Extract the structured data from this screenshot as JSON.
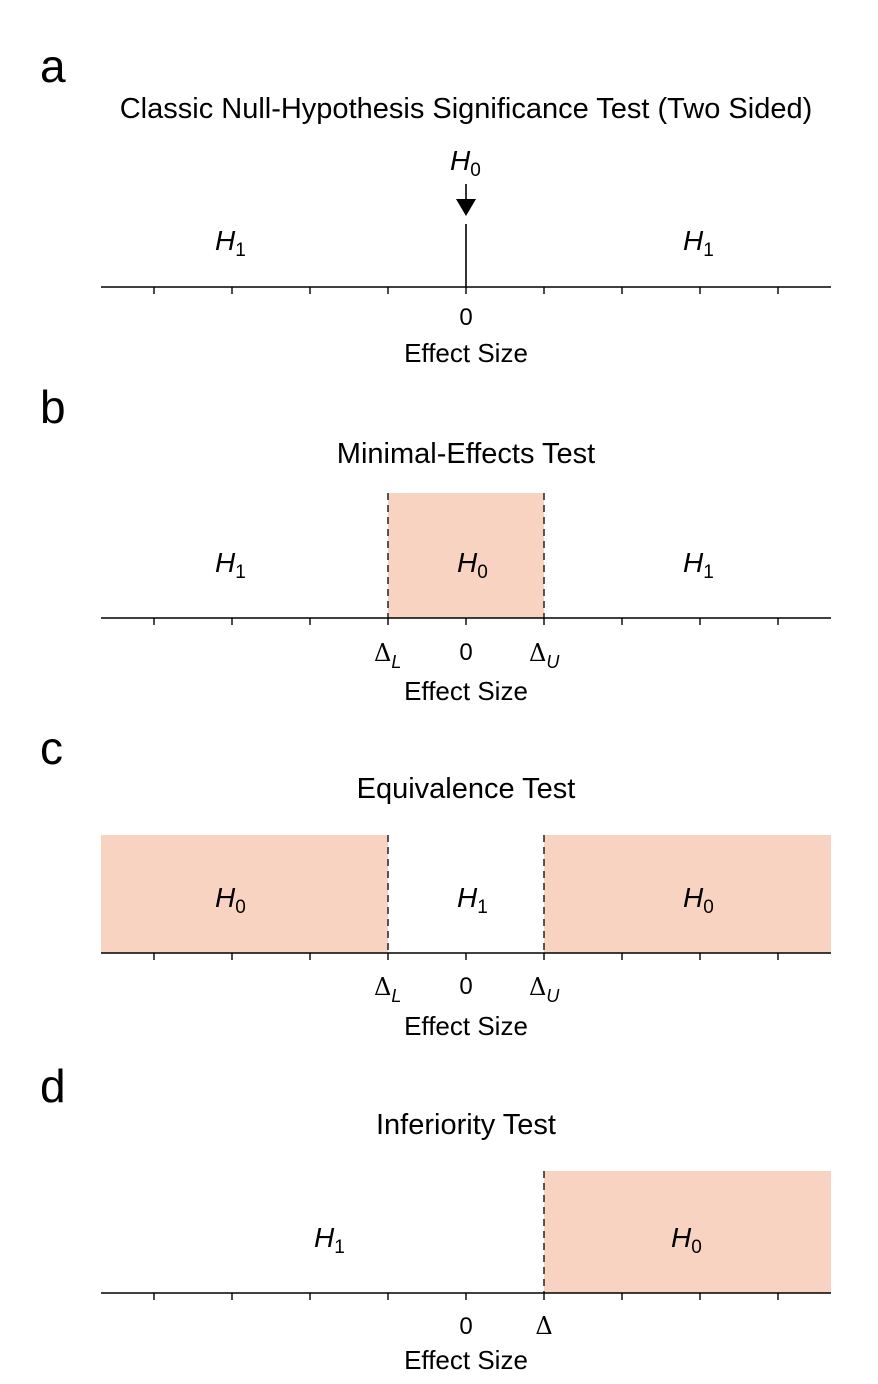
{
  "panels": [
    {
      "letter": "a",
      "title": "Classic Null-Hypothesis Significance Test (Two Sided)",
      "h0": {
        "label": "H",
        "sub": "0"
      },
      "h1_left": {
        "label": "H",
        "sub": "1"
      },
      "h1_right": {
        "label": "H",
        "sub": "1"
      },
      "zero_label": "0",
      "axis_title": "Effect Size"
    },
    {
      "letter": "b",
      "title": "Minimal-Effects Test",
      "h0": {
        "label": "H",
        "sub": "0"
      },
      "h1_left": {
        "label": "H",
        "sub": "1"
      },
      "h1_right": {
        "label": "H",
        "sub": "1"
      },
      "delta_lower": {
        "symbol": "Δ",
        "sub": "L"
      },
      "delta_upper": {
        "symbol": "Δ",
        "sub": "U"
      },
      "zero_label": "0",
      "axis_title": "Effect Size"
    },
    {
      "letter": "c",
      "title": "Equivalence Test",
      "h0_left": {
        "label": "H",
        "sub": "0"
      },
      "h1": {
        "label": "H",
        "sub": "1"
      },
      "h0_right": {
        "label": "H",
        "sub": "0"
      },
      "delta_lower": {
        "symbol": "Δ",
        "sub": "L"
      },
      "delta_upper": {
        "symbol": "Δ",
        "sub": "U"
      },
      "zero_label": "0",
      "axis_title": "Effect Size"
    },
    {
      "letter": "d",
      "title": "Inferiority Test",
      "h1": {
        "label": "H",
        "sub": "1"
      },
      "h0": {
        "label": "H",
        "sub": "0"
      },
      "delta": {
        "symbol": "Δ"
      },
      "zero_label": "0",
      "axis_title": "Effect Size"
    }
  ],
  "colors": {
    "h0_region": "#f9d3c1",
    "axis": "#000000",
    "bound_line": "#222222"
  }
}
